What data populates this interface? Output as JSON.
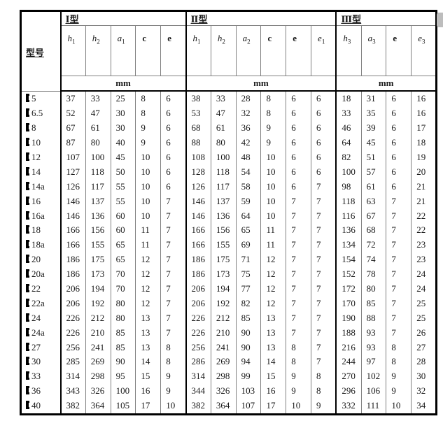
{
  "table": {
    "model_header": "型号",
    "unit_label": "mm",
    "row_label_prefix": "channel-steel-symbol",
    "groups": [
      {
        "label": "Ⅰ型",
        "columns": [
          {
            "base": "h",
            "sub": "1",
            "style": "italic"
          },
          {
            "base": "h",
            "sub": "2",
            "style": "italic"
          },
          {
            "base": "a",
            "sub": "1",
            "style": "italic"
          },
          {
            "base": "c",
            "sub": "",
            "style": "bold"
          },
          {
            "base": "e",
            "sub": "",
            "style": "bold"
          }
        ]
      },
      {
        "label": "Ⅱ型",
        "columns": [
          {
            "base": "h",
            "sub": "1",
            "style": "italic"
          },
          {
            "base": "h",
            "sub": "2",
            "style": "italic"
          },
          {
            "base": "a",
            "sub": "2",
            "style": "italic"
          },
          {
            "base": "c",
            "sub": "",
            "style": "bold"
          },
          {
            "base": "e",
            "sub": "",
            "style": "bold"
          },
          {
            "base": "e",
            "sub": "1",
            "style": "italic"
          }
        ]
      },
      {
        "label": "Ⅲ型",
        "columns": [
          {
            "base": "h",
            "sub": "3",
            "style": "italic"
          },
          {
            "base": "a",
            "sub": "3",
            "style": "italic"
          },
          {
            "base": "e",
            "sub": "",
            "style": "bold"
          },
          {
            "base": "e",
            "sub": "3",
            "style": "italic"
          }
        ]
      }
    ],
    "rows": [
      {
        "label": "5",
        "values": [
          37,
          33,
          25,
          8,
          6,
          38,
          33,
          28,
          8,
          6,
          6,
          18,
          31,
          6,
          16
        ]
      },
      {
        "label": "6.5",
        "values": [
          52,
          47,
          30,
          8,
          6,
          53,
          47,
          32,
          8,
          6,
          6,
          33,
          35,
          6,
          16
        ]
      },
      {
        "label": "8",
        "values": [
          67,
          61,
          30,
          9,
          6,
          68,
          61,
          36,
          9,
          6,
          6,
          46,
          39,
          6,
          17
        ]
      },
      {
        "label": "10",
        "values": [
          87,
          80,
          40,
          9,
          6,
          88,
          80,
          42,
          9,
          6,
          6,
          64,
          45,
          6,
          18
        ]
      },
      {
        "label": "12",
        "values": [
          107,
          100,
          45,
          10,
          6,
          108,
          100,
          48,
          10,
          6,
          6,
          82,
          51,
          6,
          19
        ]
      },
      {
        "label": "14",
        "values": [
          127,
          118,
          50,
          10,
          6,
          128,
          118,
          54,
          10,
          6,
          6,
          100,
          57,
          6,
          20
        ]
      },
      {
        "label": "14a",
        "values": [
          126,
          117,
          55,
          10,
          6,
          126,
          117,
          58,
          10,
          6,
          7,
          98,
          61,
          6,
          21
        ]
      },
      {
        "label": "16",
        "values": [
          146,
          137,
          55,
          10,
          7,
          146,
          137,
          59,
          10,
          7,
          7,
          118,
          63,
          7,
          21
        ]
      },
      {
        "label": "16a",
        "values": [
          146,
          136,
          60,
          10,
          7,
          146,
          136,
          64,
          10,
          7,
          7,
          116,
          67,
          7,
          22
        ]
      },
      {
        "label": "18",
        "values": [
          166,
          156,
          60,
          11,
          7,
          166,
          156,
          65,
          11,
          7,
          7,
          136,
          68,
          7,
          22
        ]
      },
      {
        "label": "18a",
        "values": [
          166,
          155,
          65,
          11,
          7,
          166,
          155,
          69,
          11,
          7,
          7,
          134,
          72,
          7,
          23
        ]
      },
      {
        "label": "20",
        "values": [
          186,
          175,
          65,
          12,
          7,
          186,
          175,
          71,
          12,
          7,
          7,
          154,
          74,
          7,
          23
        ]
      },
      {
        "label": "20a",
        "values": [
          186,
          173,
          70,
          12,
          7,
          186,
          173,
          75,
          12,
          7,
          7,
          152,
          78,
          7,
          24
        ]
      },
      {
        "label": "22",
        "values": [
          206,
          194,
          70,
          12,
          7,
          206,
          194,
          77,
          12,
          7,
          7,
          172,
          80,
          7,
          24
        ]
      },
      {
        "label": "22a",
        "values": [
          206,
          192,
          80,
          12,
          7,
          206,
          192,
          82,
          12,
          7,
          7,
          170,
          85,
          7,
          25
        ]
      },
      {
        "label": "24",
        "values": [
          226,
          212,
          80,
          13,
          7,
          226,
          212,
          85,
          13,
          7,
          7,
          190,
          88,
          7,
          25
        ]
      },
      {
        "label": "24a",
        "values": [
          226,
          210,
          85,
          13,
          7,
          226,
          210,
          90,
          13,
          7,
          7,
          188,
          93,
          7,
          26
        ]
      },
      {
        "label": "27",
        "values": [
          256,
          241,
          85,
          13,
          8,
          256,
          241,
          90,
          13,
          8,
          7,
          216,
          93,
          8,
          27
        ]
      },
      {
        "label": "30",
        "values": [
          285,
          269,
          90,
          14,
          8,
          286,
          269,
          94,
          14,
          8,
          7,
          244,
          97,
          8,
          28
        ]
      },
      {
        "label": "33",
        "values": [
          314,
          298,
          95,
          15,
          9,
          314,
          298,
          99,
          15,
          9,
          8,
          270,
          102,
          9,
          30
        ]
      },
      {
        "label": "36",
        "values": [
          343,
          326,
          100,
          16,
          9,
          344,
          326,
          103,
          16,
          9,
          8,
          296,
          106,
          9,
          32
        ]
      },
      {
        "label": "40",
        "values": [
          382,
          364,
          105,
          17,
          10,
          382,
          364,
          107,
          17,
          10,
          9,
          332,
          111,
          10,
          34
        ]
      }
    ]
  },
  "colors": {
    "outer_border": "#000000",
    "inner_grid": "#808080",
    "text": "#1a1a1a",
    "scroll_thumb": "#bdbdbd"
  }
}
